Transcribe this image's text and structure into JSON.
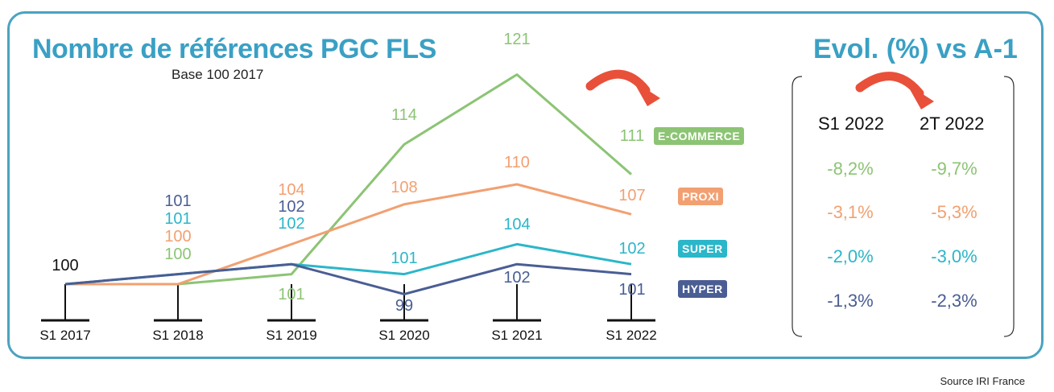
{
  "header": {
    "title": "Nombre de références PGC FLS",
    "subtitle": "Base 100 2017",
    "evol_title": "Evol. (%) vs A-1"
  },
  "source": "Source IRI France",
  "colors": {
    "frame": "#4aa3c0",
    "title": "#3aa0c4",
    "ecommerce": "#8cc474",
    "proxi": "#f2a071",
    "super": "#2bb6c9",
    "hyper": "#4a5e94",
    "arrow": "#e8503a"
  },
  "chart_data": {
    "type": "line",
    "categories": [
      "S1 2017",
      "S1 2018",
      "S1 2019",
      "S1 2020",
      "S1 2021",
      "S1 2022"
    ],
    "series": [
      {
        "name": "E-COMMERCE",
        "values": [
          100,
          100,
          101,
          114,
          121,
          111
        ],
        "labels": [
          "",
          "100",
          "101",
          "114",
          "121",
          "111"
        ]
      },
      {
        "name": "PROXI",
        "values": [
          100,
          100,
          104,
          108,
          110,
          107
        ],
        "labels": [
          "",
          "100",
          "104",
          "108",
          "110",
          "107"
        ]
      },
      {
        "name": "SUPER",
        "values": [
          100,
          101,
          102,
          101,
          104,
          102
        ],
        "labels": [
          "",
          "101",
          "102",
          "101",
          "104",
          "102"
        ]
      },
      {
        "name": "HYPER",
        "values": [
          100,
          101,
          102,
          99,
          102,
          101
        ],
        "labels": [
          "100",
          "101",
          "102",
          "99",
          "102",
          "101"
        ]
      }
    ]
  },
  "table": {
    "columns": [
      "S1 2022",
      "2T 2022"
    ],
    "rows": [
      {
        "series": "E-COMMERCE",
        "values": [
          "-8,2%",
          "-9,7%"
        ]
      },
      {
        "series": "PROXI",
        "values": [
          "-3,1%",
          "-5,3%"
        ]
      },
      {
        "series": "SUPER",
        "values": [
          "-2,0%",
          "-3,0%"
        ]
      },
      {
        "series": "HYPER",
        "values": [
          "-1,3%",
          "-2,3%"
        ]
      }
    ]
  }
}
